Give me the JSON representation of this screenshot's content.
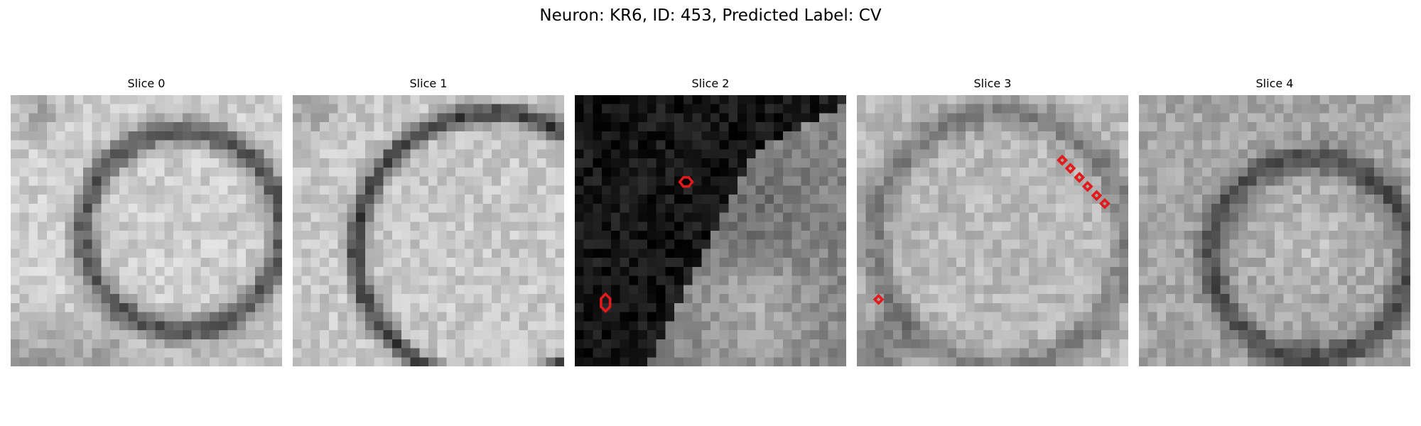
{
  "figure": {
    "title": "Neuron: KR6, ID: 453, Predicted Label: CV",
    "panels": [
      {
        "label": "Slice 0",
        "image": "grayscale EM patch with cell membrane arc",
        "markers": 0
      },
      {
        "label": "Slice 1",
        "image": "grayscale EM patch with dark curved membrane",
        "markers": 0
      },
      {
        "label": "Slice 2",
        "image": "dark region on left, lighter tissue on right",
        "markers": 2
      },
      {
        "label": "Slice 3",
        "image": "grayscale EM patch",
        "markers": 7
      },
      {
        "label": "Slice 4",
        "image": "grayscale EM patch",
        "markers": 0
      }
    ],
    "marker_color": "#e31a1c"
  }
}
